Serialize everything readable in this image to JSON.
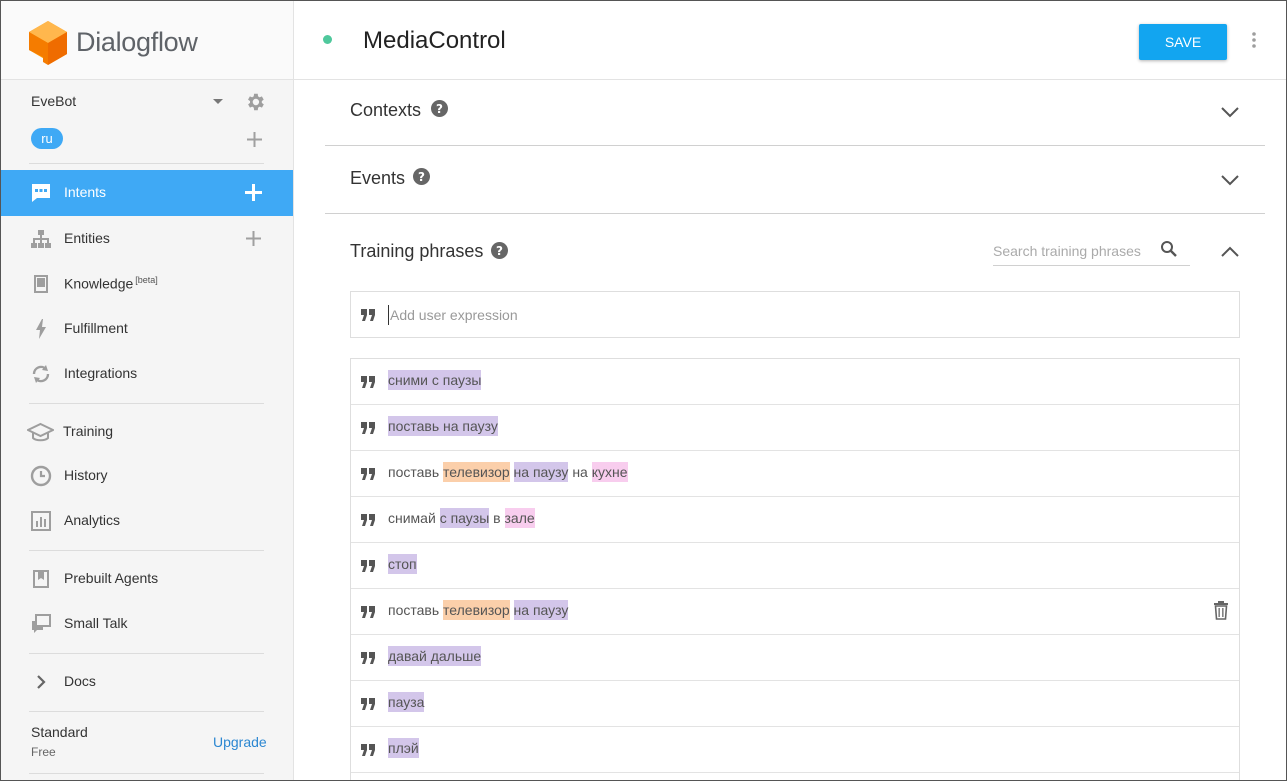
{
  "app": {
    "name": "Dialogflow",
    "brand_color": "#ff9800"
  },
  "sidebar": {
    "agent_name": "EveBot",
    "language": "ru",
    "nav": [
      {
        "id": "intents",
        "label": "Intents",
        "icon": "chat-bubble-icon",
        "active": true,
        "has_add": true
      },
      {
        "id": "entities",
        "label": "Entities",
        "icon": "hierarchy-icon",
        "active": false,
        "has_add": true
      },
      {
        "id": "knowledge",
        "label": "Knowledge",
        "badge": "[beta]",
        "icon": "book-icon",
        "active": false
      },
      {
        "id": "fulfillment",
        "label": "Fulfillment",
        "icon": "bolt-icon",
        "active": false
      },
      {
        "id": "integrations",
        "label": "Integrations",
        "icon": "sync-icon",
        "active": false
      },
      {
        "id": "training",
        "label": "Training",
        "icon": "graduation-cap-icon",
        "active": false
      },
      {
        "id": "history",
        "label": "History",
        "icon": "clock-icon",
        "active": false
      },
      {
        "id": "analytics",
        "label": "Analytics",
        "icon": "bar-chart-icon",
        "active": false
      },
      {
        "id": "prebuilt-agents",
        "label": "Prebuilt Agents",
        "icon": "bookmark-book-icon",
        "active": false
      },
      {
        "id": "small-talk",
        "label": "Small Talk",
        "icon": "chat-squares-icon",
        "active": false
      },
      {
        "id": "docs",
        "label": "Docs",
        "icon": "chevron-right-icon",
        "active": false
      }
    ],
    "plan": {
      "name": "Standard",
      "tier": "Free",
      "upgrade_label": "Upgrade"
    }
  },
  "header": {
    "intent_name": "MediaControl",
    "status_color": "#4fc89c",
    "save_label": "SAVE"
  },
  "sections": {
    "contexts": {
      "title": "Contexts"
    },
    "events": {
      "title": "Events"
    },
    "training": {
      "title": "Training phrases",
      "search_placeholder": "Search training phrases",
      "add_placeholder": "Add user expression",
      "phrases": [
        {
          "segments": [
            {
              "text": "сними с паузы",
              "hl": "purple"
            }
          ]
        },
        {
          "segments": [
            {
              "text": "поставь на паузу",
              "hl": "purple"
            }
          ]
        },
        {
          "segments": [
            {
              "text": "поставь ",
              "hl": ""
            },
            {
              "text": "телевизор",
              "hl": "orange"
            },
            {
              "text": " ",
              "hl": ""
            },
            {
              "text": "на паузу",
              "hl": "purple"
            },
            {
              "text": " на ",
              "hl": ""
            },
            {
              "text": "кухне",
              "hl": "pink"
            }
          ]
        },
        {
          "segments": [
            {
              "text": "снимай ",
              "hl": ""
            },
            {
              "text": "с паузы",
              "hl": "purple"
            },
            {
              "text": " в ",
              "hl": ""
            },
            {
              "text": "зале",
              "hl": "pink"
            }
          ]
        },
        {
          "segments": [
            {
              "text": "стоп",
              "hl": "purple"
            }
          ]
        },
        {
          "segments": [
            {
              "text": "поставь ",
              "hl": ""
            },
            {
              "text": "телевизор",
              "hl": "orange"
            },
            {
              "text": " ",
              "hl": ""
            },
            {
              "text": "на паузу",
              "hl": "purple"
            }
          ],
          "show_delete": true
        },
        {
          "segments": [
            {
              "text": "давай дальше",
              "hl": "purple"
            }
          ]
        },
        {
          "segments": [
            {
              "text": "пауза",
              "hl": "purple"
            }
          ]
        },
        {
          "segments": [
            {
              "text": "плэй",
              "hl": "purple"
            }
          ]
        }
      ]
    }
  }
}
